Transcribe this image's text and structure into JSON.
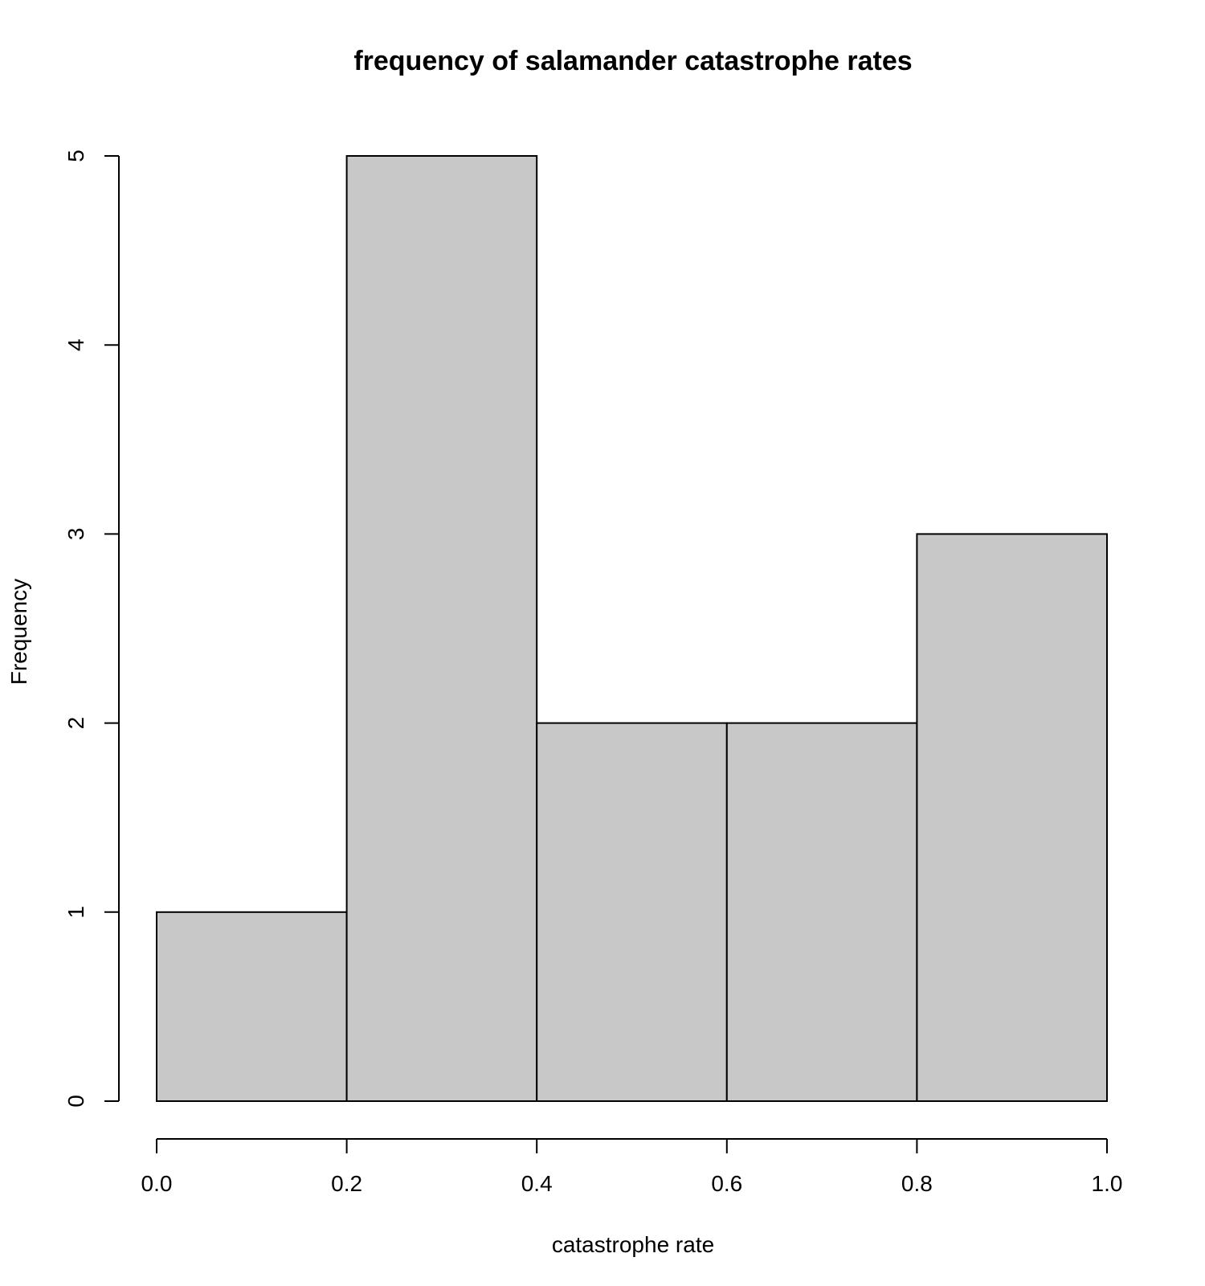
{
  "chart_data": {
    "type": "bar",
    "histogram": true,
    "title": "frequency of salamander catastrophe rates",
    "xlabel": "catastrophe rate",
    "ylabel": "Frequency",
    "bins": [
      {
        "x0": 0.0,
        "x1": 0.2,
        "count": 1
      },
      {
        "x0": 0.2,
        "x1": 0.4,
        "count": 5
      },
      {
        "x0": 0.4,
        "x1": 0.6,
        "count": 2
      },
      {
        "x0": 0.6,
        "x1": 0.8,
        "count": 2
      },
      {
        "x0": 0.8,
        "x1": 1.0,
        "count": 3
      }
    ],
    "xlim": [
      0.0,
      1.0
    ],
    "ylim": [
      0,
      5
    ],
    "x_ticks": [
      "0.0",
      "0.2",
      "0.4",
      "0.6",
      "0.8",
      "1.0"
    ],
    "y_ticks": [
      "0",
      "1",
      "2",
      "3",
      "4",
      "5"
    ],
    "grid": false,
    "legend": "none",
    "colors": {
      "bar_fill": "#c8c8c8",
      "bar_stroke": "#000000",
      "axis": "#000000"
    }
  }
}
